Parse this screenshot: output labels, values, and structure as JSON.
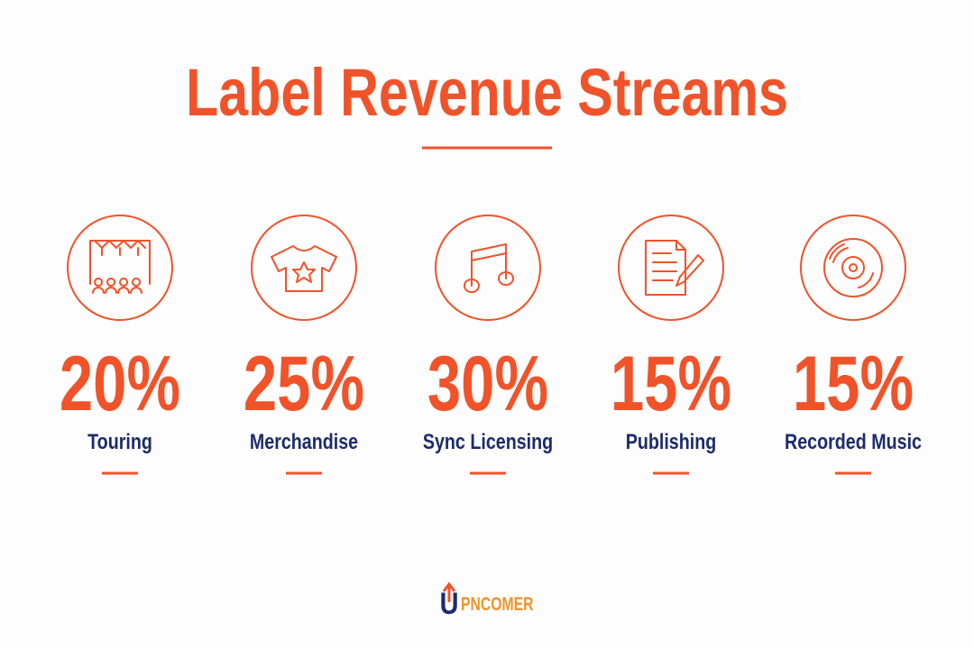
{
  "header": {
    "title": "Label Revenue Streams"
  },
  "items": [
    {
      "value": "20%",
      "label": "Touring"
    },
    {
      "value": "25%",
      "label": "Merchandise"
    },
    {
      "value": "30%",
      "label": "Sync Licensing"
    },
    {
      "value": "15%",
      "label": "Publishing"
    },
    {
      "value": "15%",
      "label": "Recorded Music"
    }
  ],
  "logo": {
    "initial": "U",
    "text": "PNCOMER"
  }
}
